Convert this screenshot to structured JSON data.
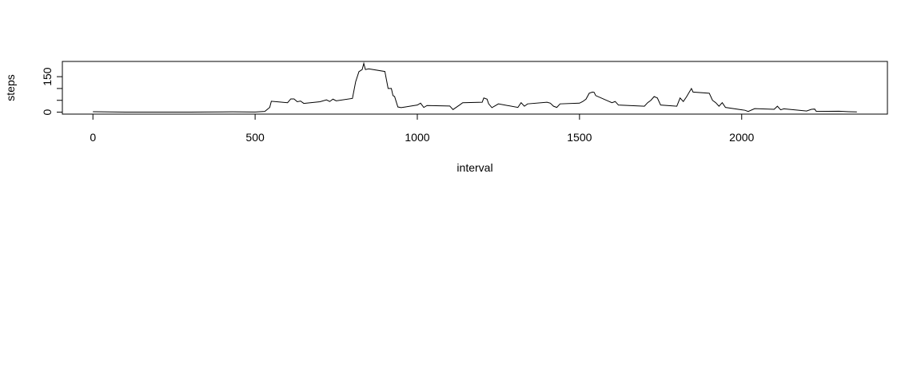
{
  "chart_data": {
    "type": "line",
    "x_label": "interval",
    "y_label": "steps",
    "x": [
      0,
      100,
      200,
      300,
      400,
      430,
      500,
      530,
      545,
      550,
      600,
      610,
      620,
      630,
      640,
      650,
      700,
      720,
      730,
      740,
      750,
      800,
      810,
      820,
      830,
      835,
      840,
      850,
      900,
      910,
      920,
      925,
      930,
      940,
      950,
      1000,
      1010,
      1020,
      1030,
      1100,
      1110,
      1130,
      1140,
      1200,
      1205,
      1215,
      1220,
      1230,
      1240,
      1250,
      1310,
      1320,
      1330,
      1340,
      1400,
      1410,
      1420,
      1430,
      1440,
      1500,
      1510,
      1520,
      1530,
      1540,
      1545,
      1550,
      1600,
      1610,
      1620,
      1700,
      1710,
      1720,
      1730,
      1740,
      1750,
      1800,
      1810,
      1820,
      1830,
      1845,
      1850,
      1900,
      1910,
      1920,
      1930,
      1940,
      1950,
      2000,
      2010,
      2020,
      2040,
      2100,
      2110,
      2120,
      2130,
      2200,
      2215,
      2225,
      2230,
      2300,
      2330,
      2355
    ],
    "values": [
      1.7,
      0.3,
      0,
      0.4,
      1.2,
      1.5,
      0.5,
      3,
      20,
      46,
      40,
      56,
      56,
      44,
      47,
      37,
      44,
      52,
      45,
      55,
      48,
      58,
      129,
      171,
      180,
      206,
      180,
      183,
      172,
      100,
      100,
      70,
      66,
      22,
      19,
      30,
      38,
      20,
      28,
      26,
      11,
      30,
      40,
      42,
      60,
      55,
      35,
      19,
      27,
      35,
      20,
      40,
      25,
      35,
      42,
      38,
      25,
      20,
      35,
      38,
      45,
      55,
      80,
      85,
      84,
      70,
      40,
      45,
      30,
      25,
      40,
      50,
      66,
      60,
      30,
      25,
      60,
      45,
      65,
      100,
      85,
      80,
      50,
      40,
      25,
      40,
      20,
      10,
      8,
      3,
      15,
      12,
      25,
      10,
      14,
      5,
      12,
      13,
      3,
      4,
      2,
      1
    ],
    "color": "#000000",
    "xlim": [
      -94.2,
      2449.2
    ],
    "xticks": [
      0,
      500,
      1000,
      1500,
      2000
    ],
    "ylim": [
      -8.25,
      214.4
    ],
    "yticks": [
      0,
      {
        "value": 50,
        "label": null
      },
      {
        "value": 100,
        "label": null
      },
      150
    ]
  }
}
